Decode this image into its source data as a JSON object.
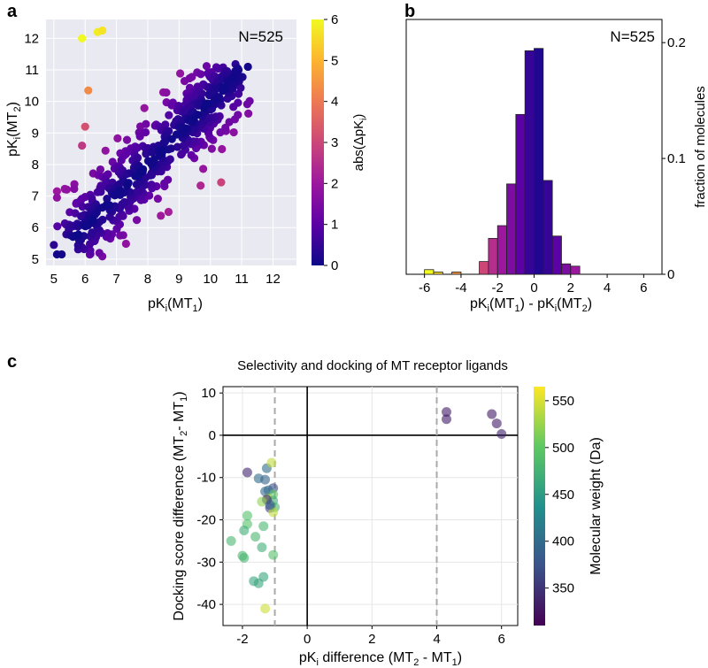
{
  "panel_labels": [
    "a",
    "b",
    "c"
  ],
  "colors": {
    "panel_bg": "#e9e9f1",
    "grid": "#ffffff",
    "grid_c": "#e6e6e6",
    "plasma_stops": [
      "#0d0887",
      "#5c01a6",
      "#9c179e",
      "#cc4778",
      "#ed7953",
      "#fdb42f",
      "#f0f921"
    ],
    "viridis_stops": [
      "#440154",
      "#3b528b",
      "#21918c",
      "#5ec962",
      "#fde725"
    ]
  },
  "chart_data": [
    {
      "id": "a",
      "type": "scatter",
      "title": "",
      "annotation": "N=525",
      "xlabel": "pK",
      "xlabel_sub": "i",
      "xlabel_tail": "(MT",
      "xlabel_tail_sub": "1",
      "xlabel_close": ")",
      "ylabel": "pK",
      "ylabel_sub": "i",
      "ylabel_tail": "(MT",
      "ylabel_tail_sub": "2",
      "ylabel_close": ")",
      "xlim": [
        4.75,
        12.75
      ],
      "ylim": [
        4.8,
        12.6
      ],
      "xticks": [
        5,
        6,
        7,
        8,
        9,
        10,
        11,
        12
      ],
      "yticks": [
        5,
        6,
        7,
        8,
        9,
        10,
        11,
        12
      ],
      "colorbar": {
        "label": "abs(ΔpK",
        "label_sub": "i",
        "label_close": ")",
        "range": [
          0,
          6
        ],
        "ticks": [
          0,
          1,
          2,
          3,
          4,
          5,
          6
        ],
        "colormap": "plasma"
      },
      "n_points": 525,
      "highlighted_points": [
        {
          "x": 5.9,
          "y": 12.0,
          "c": 6.0
        },
        {
          "x": 6.4,
          "y": 12.2,
          "c": 5.8
        },
        {
          "x": 6.55,
          "y": 12.25,
          "c": 5.7
        },
        {
          "x": 6.1,
          "y": 10.35,
          "c": 4.3
        },
        {
          "x": 5.1,
          "y": 5.15,
          "c": 0.1
        },
        {
          "x": 5.25,
          "y": 5.15,
          "c": 0.1
        },
        {
          "x": 5.0,
          "y": 5.45,
          "c": 0.4
        },
        {
          "x": 11.2,
          "y": 11.1,
          "c": 0.1
        },
        {
          "x": 10.9,
          "y": 11.0,
          "c": 0.1
        },
        {
          "x": 5.1,
          "y": 7.15,
          "c": 2.0
        },
        {
          "x": 5.1,
          "y": 6.95,
          "c": 1.8
        },
        {
          "x": 6.0,
          "y": 9.2,
          "c": 3.2
        },
        {
          "x": 5.9,
          "y": 8.6,
          "c": 2.7
        }
      ]
    },
    {
      "id": "b",
      "type": "bar",
      "annotation": "N=525",
      "xlabel": "pK",
      "xlabel_sub": "i",
      "xlabel_tail": "(MT",
      "xlabel_tail_sub": "1",
      "xlabel_mid": ") - pK",
      "xlabel_mid_sub": "i",
      "xlabel_tail2": "(MT",
      "xlabel_tail2_sub": "2",
      "xlabel_close": ")",
      "ylabel": "fraction of molecules",
      "xlim": [
        -7,
        7
      ],
      "ylim": [
        0,
        0.22
      ],
      "xticks": [
        -6,
        -4,
        -2,
        0,
        2,
        4,
        6
      ],
      "yticks": [
        0,
        0.1,
        0.2
      ],
      "ytick_labels": [
        "0",
        "0.1",
        "0.2"
      ],
      "bin_width": 0.5,
      "bins": [
        {
          "left": -6.0,
          "value": 0.004,
          "c": 6.0
        },
        {
          "left": -5.5,
          "value": 0.002,
          "c": 5.5
        },
        {
          "left": -4.5,
          "value": 0.002,
          "c": 4.5
        },
        {
          "left": -3.0,
          "value": 0.011,
          "c": 3.0
        },
        {
          "left": -2.5,
          "value": 0.031,
          "c": 2.5
        },
        {
          "left": -2.0,
          "value": 0.042,
          "c": 2.0
        },
        {
          "left": -1.5,
          "value": 0.078,
          "c": 1.5
        },
        {
          "left": -1.0,
          "value": 0.138,
          "c": 1.0
        },
        {
          "left": -0.5,
          "value": 0.193,
          "c": 0.5
        },
        {
          "left": 0.0,
          "value": 0.195,
          "c": 0.25
        },
        {
          "left": 0.5,
          "value": 0.081,
          "c": 0.5
        },
        {
          "left": 1.0,
          "value": 0.033,
          "c": 1.0
        },
        {
          "left": 1.5,
          "value": 0.009,
          "c": 1.5
        },
        {
          "left": 2.0,
          "value": 0.007,
          "c": 2.0
        }
      ]
    },
    {
      "id": "c",
      "type": "scatter",
      "title": "Selectivity and docking of MT receptor ligands",
      "xlabel": "pK",
      "xlabel_sub": "i",
      "xlabel_tail": " difference (MT",
      "xlabel_tail_sub": "2",
      "xlabel_mid": " - MT",
      "xlabel_mid_sub": "1",
      "xlabel_close": ")",
      "ylabel": "Docking score difference (MT",
      "ylabel_sub": "2",
      "ylabel_mid": "- MT",
      "ylabel_mid_sub": "1",
      "ylabel_close": ")",
      "xlim": [
        -2.6,
        6.5
      ],
      "ylim": [
        -45,
        11.5
      ],
      "xticks": [
        -2,
        0,
        2,
        4,
        6
      ],
      "yticks": [
        10,
        0,
        -10,
        -20,
        -30,
        -40
      ],
      "vlines_dashed": [
        -1,
        4
      ],
      "zero_lines": true,
      "colorbar": {
        "label": "Molecular weight (Da)",
        "range": [
          310,
          565
        ],
        "ticks": [
          350,
          400,
          450,
          500,
          550
        ],
        "colormap": "viridis"
      },
      "points": [
        {
          "x": 4.3,
          "y": 5.5,
          "c": 330
        },
        {
          "x": 4.3,
          "y": 3.8,
          "c": 330
        },
        {
          "x": 5.7,
          "y": 5.0,
          "c": 330
        },
        {
          "x": 5.85,
          "y": 2.8,
          "c": 330
        },
        {
          "x": 6.0,
          "y": 0.3,
          "c": 335
        },
        {
          "x": -1.85,
          "y": -8.8,
          "c": 340
        },
        {
          "x": -1.25,
          "y": -7.8,
          "c": 400
        },
        {
          "x": -1.1,
          "y": -6.5,
          "c": 540
        },
        {
          "x": -1.3,
          "y": -10.5,
          "c": 390
        },
        {
          "x": -1.05,
          "y": -12.5,
          "c": 370
        },
        {
          "x": -1.2,
          "y": -13.0,
          "c": 395
        },
        {
          "x": -1.05,
          "y": -14.0,
          "c": 500
        },
        {
          "x": -1.5,
          "y": -10.2,
          "c": 400
        },
        {
          "x": -1.3,
          "y": -13.3,
          "c": 400
        },
        {
          "x": -1.2,
          "y": -15.0,
          "c": 530
        },
        {
          "x": -1.05,
          "y": -15.5,
          "c": 470
        },
        {
          "x": -1.25,
          "y": -15.2,
          "c": 340
        },
        {
          "x": -1.4,
          "y": -15.7,
          "c": 520
        },
        {
          "x": -1.15,
          "y": -17.2,
          "c": 360
        },
        {
          "x": -1.0,
          "y": -17.0,
          "c": 480
        },
        {
          "x": -1.05,
          "y": -18.2,
          "c": 540
        },
        {
          "x": -1.15,
          "y": -16.5,
          "c": 380
        },
        {
          "x": -1.85,
          "y": -19.0,
          "c": 490
        },
        {
          "x": -1.85,
          "y": -21.0,
          "c": 490
        },
        {
          "x": -1.35,
          "y": -21.5,
          "c": 480
        },
        {
          "x": -1.6,
          "y": -24.0,
          "c": 480
        },
        {
          "x": -1.95,
          "y": -22.5,
          "c": 470
        },
        {
          "x": -2.35,
          "y": -25.0,
          "c": 480
        },
        {
          "x": -1.4,
          "y": -26.5,
          "c": 470
        },
        {
          "x": -2.0,
          "y": -28.5,
          "c": 480
        },
        {
          "x": -1.95,
          "y": -29.0,
          "c": 480
        },
        {
          "x": -1.05,
          "y": -28.3,
          "c": 490
        },
        {
          "x": -1.35,
          "y": -33.5,
          "c": 460
        },
        {
          "x": -1.65,
          "y": -34.5,
          "c": 460
        },
        {
          "x": -1.5,
          "y": -35.0,
          "c": 460
        },
        {
          "x": -1.3,
          "y": -41.0,
          "c": 545
        }
      ]
    }
  ]
}
